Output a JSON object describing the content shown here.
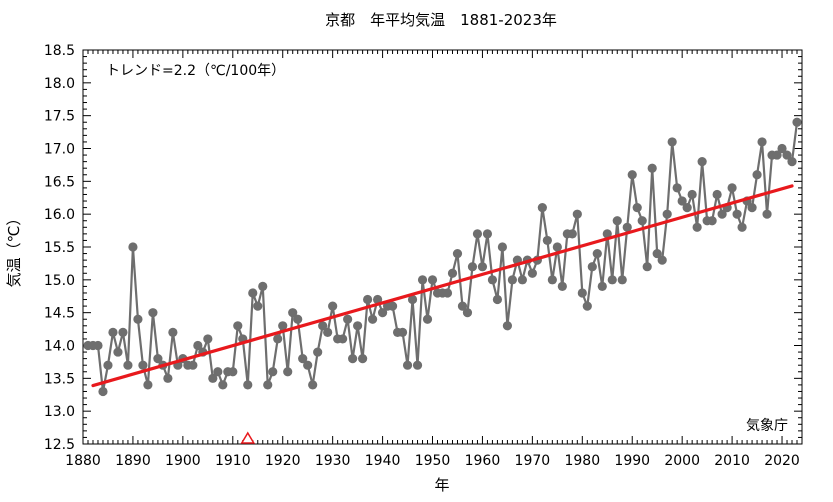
{
  "chart_data": {
    "type": "line",
    "title": "京都　年平均気温　1881-2023年",
    "xlabel": "年",
    "ylabel": "気温（℃）",
    "xlim": [
      1880,
      2024
    ],
    "ylim": [
      12.5,
      18.5
    ],
    "x_ticks": [
      1880,
      1890,
      1900,
      1910,
      1920,
      1930,
      1940,
      1950,
      1960,
      1970,
      1980,
      1990,
      2000,
      2010,
      2020
    ],
    "y_ticks": [
      12.5,
      13.0,
      13.5,
      14.0,
      14.5,
      15.0,
      15.5,
      16.0,
      16.5,
      17.0,
      17.5,
      18.0,
      18.5
    ],
    "grid": false,
    "annotation": "トレンド=2.2（℃/100年）",
    "source": "気象庁",
    "series": [
      {
        "kind": "observed",
        "color": "#6e6e6e",
        "x": [
          1881,
          1882,
          1883,
          1884,
          1885,
          1886,
          1887,
          1888,
          1889,
          1890,
          1891,
          1892,
          1893,
          1894,
          1895,
          1896,
          1897,
          1898,
          1899,
          1900,
          1901,
          1902,
          1903,
          1904,
          1905,
          1906,
          1907,
          1908,
          1909,
          1910,
          1911,
          1912,
          1913,
          1914,
          1915,
          1916,
          1917,
          1918,
          1919,
          1920,
          1921,
          1922,
          1923,
          1924,
          1925,
          1926,
          1927,
          1928,
          1929,
          1930,
          1931,
          1932,
          1933,
          1934,
          1935,
          1936,
          1937,
          1938,
          1939,
          1940,
          1941,
          1942,
          1943,
          1944,
          1945,
          1946,
          1947,
          1948,
          1949,
          1950,
          1951,
          1952,
          1953,
          1954,
          1955,
          1956,
          1957,
          1958,
          1959,
          1960,
          1961,
          1962,
          1963,
          1964,
          1965,
          1966,
          1967,
          1968,
          1969,
          1970,
          1971,
          1972,
          1973,
          1974,
          1975,
          1976,
          1977,
          1978,
          1979,
          1980,
          1981,
          1982,
          1983,
          1984,
          1985,
          1986,
          1987,
          1988,
          1989,
          1990,
          1991,
          1992,
          1993,
          1994,
          1995,
          1996,
          1997,
          1998,
          1999,
          2000,
          2001,
          2002,
          2003,
          2004,
          2005,
          2006,
          2007,
          2008,
          2009,
          2010,
          2011,
          2012,
          2013,
          2014,
          2015,
          2016,
          2017,
          2018,
          2019,
          2020,
          2021,
          2022,
          2023
        ],
        "y": [
          14.0,
          14.0,
          14.0,
          13.3,
          13.7,
          14.2,
          13.9,
          14.2,
          13.7,
          15.5,
          14.4,
          13.7,
          13.4,
          14.5,
          13.8,
          13.7,
          13.5,
          14.2,
          13.7,
          13.8,
          13.7,
          13.7,
          14.0,
          13.9,
          14.1,
          13.5,
          13.6,
          13.4,
          13.6,
          13.6,
          14.3,
          14.1,
          13.4,
          14.8,
          14.6,
          14.9,
          13.4,
          13.6,
          14.1,
          14.3,
          13.6,
          14.5,
          14.4,
          13.8,
          13.7,
          13.4,
          13.9,
          14.3,
          14.2,
          14.6,
          14.1,
          14.1,
          14.4,
          13.8,
          14.3,
          13.8,
          14.7,
          14.4,
          14.7,
          14.5,
          14.6,
          14.6,
          14.2,
          14.2,
          13.7,
          14.7,
          13.7,
          15.0,
          14.4,
          15.0,
          14.8,
          14.8,
          14.8,
          15.1,
          15.4,
          14.6,
          14.5,
          15.2,
          15.7,
          15.2,
          15.7,
          15.0,
          14.7,
          15.5,
          14.3,
          15.0,
          15.3,
          15.0,
          15.3,
          15.1,
          15.3,
          16.1,
          15.6,
          15.0,
          15.5,
          14.9,
          15.7,
          15.7,
          16.0,
          14.8,
          14.6,
          15.2,
          15.4,
          14.9,
          15.7,
          15.0,
          15.9,
          15.0,
          15.8,
          16.6,
          16.1,
          15.9,
          15.2,
          16.7,
          15.4,
          15.3,
          16.0,
          17.1,
          16.4,
          16.2,
          16.1,
          16.3,
          15.8,
          16.8,
          15.9,
          15.9,
          16.3,
          16.0,
          16.1,
          16.4,
          16.0,
          15.8,
          16.2,
          16.1,
          16.6,
          17.1,
          16.0,
          16.9,
          16.9,
          17.0,
          16.9,
          16.8,
          17.4
        ]
      },
      {
        "kind": "trend",
        "color": "#e8191d",
        "x": [
          1882,
          2022
        ],
        "y": [
          13.39,
          16.43
        ]
      }
    ],
    "markers": [
      {
        "shape": "triangle",
        "color": "#e8191d",
        "x": 1913,
        "y": 12.5
      }
    ]
  }
}
